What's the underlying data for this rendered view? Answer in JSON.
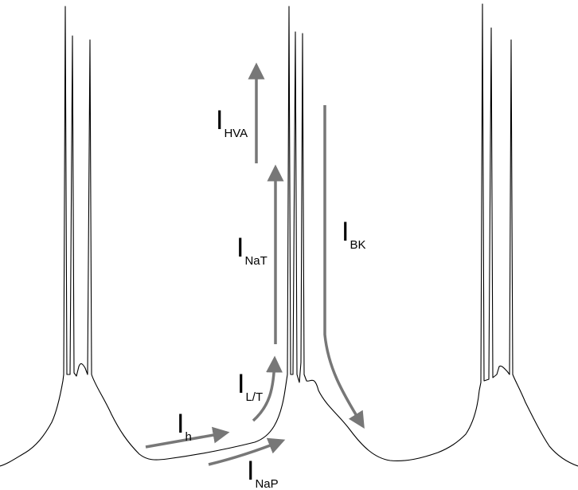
{
  "colors": {
    "trace": "#000000",
    "arrow": "#777777",
    "background": "#ffffff"
  },
  "labels": {
    "ih": {
      "main": "I",
      "sub": "h"
    },
    "inap": {
      "main": "I",
      "sub": "NaP"
    },
    "ilt": {
      "main": "I",
      "sub": "L/T"
    },
    "inat": {
      "main": "I",
      "sub": "NaT"
    },
    "ihva": {
      "main": "I",
      "sub": "HVA"
    },
    "ibk": {
      "main": "I",
      "sub": "BK"
    }
  }
}
